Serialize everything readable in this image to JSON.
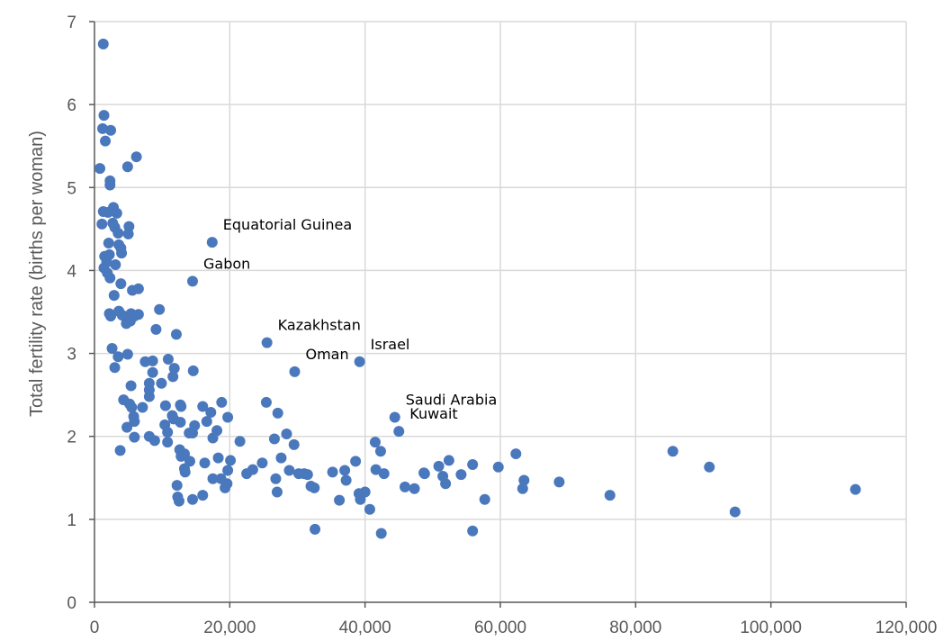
{
  "chart_data": {
    "type": "scatter",
    "title": "",
    "xlabel": "",
    "ylabel": "Total fertility rate (births per woman)",
    "xlim": [
      0,
      120000
    ],
    "ylim": [
      0,
      7
    ],
    "x_ticks": [
      "0",
      "20,000",
      "40,000",
      "60,000",
      "80,000",
      "100,000",
      "120,000"
    ],
    "y_ticks": [
      "0",
      "1",
      "2",
      "3",
      "4",
      "5",
      "6",
      "7"
    ],
    "grid": true,
    "colors": {
      "points": "#4a78bc",
      "grid": "#d9d9d9",
      "axis": "#595959"
    },
    "points": [
      [
        1300,
        6.73
      ],
      [
        1400,
        5.87
      ],
      [
        1200,
        5.71
      ],
      [
        1600,
        5.56
      ],
      [
        2400,
        5.69
      ],
      [
        800,
        5.23
      ],
      [
        2300,
        5.08
      ],
      [
        2300,
        5.03
      ],
      [
        4900,
        5.25
      ],
      [
        6200,
        5.37
      ],
      [
        1300,
        4.71
      ],
      [
        2000,
        4.7
      ],
      [
        2800,
        4.76
      ],
      [
        3300,
        4.69
      ],
      [
        2700,
        4.57
      ],
      [
        1100,
        4.56
      ],
      [
        3000,
        4.52
      ],
      [
        3500,
        4.45
      ],
      [
        5100,
        4.53
      ],
      [
        5000,
        4.44
      ],
      [
        2100,
        4.33
      ],
      [
        3600,
        4.31
      ],
      [
        3900,
        4.27
      ],
      [
        4000,
        4.21
      ],
      [
        1500,
        4.17
      ],
      [
        2200,
        4.19
      ],
      [
        1800,
        4.1
      ],
      [
        3100,
        4.07
      ],
      [
        1400,
        4.03
      ],
      [
        1900,
        3.97
      ],
      [
        2300,
        3.91
      ],
      [
        3900,
        3.84
      ],
      [
        5600,
        3.76
      ],
      [
        6500,
        3.78
      ],
      [
        2900,
        3.7
      ],
      [
        2200,
        3.48
      ],
      [
        2400,
        3.45
      ],
      [
        3600,
        3.51
      ],
      [
        4100,
        3.46
      ],
      [
        5400,
        3.48
      ],
      [
        5900,
        3.45
      ],
      [
        5300,
        3.39
      ],
      [
        4700,
        3.36
      ],
      [
        6500,
        3.47
      ],
      [
        9600,
        3.53
      ],
      [
        9100,
        3.29
      ],
      [
        12100,
        3.23
      ],
      [
        2600,
        3.06
      ],
      [
        3500,
        2.96
      ],
      [
        4900,
        2.99
      ],
      [
        3000,
        2.83
      ],
      [
        7500,
        2.9
      ],
      [
        8600,
        2.91
      ],
      [
        10900,
        2.93
      ],
      [
        11800,
        2.82
      ],
      [
        8600,
        2.77
      ],
      [
        11600,
        2.72
      ],
      [
        14600,
        2.79
      ],
      [
        8100,
        2.64
      ],
      [
        8100,
        2.56
      ],
      [
        9900,
        2.64
      ],
      [
        8100,
        2.48
      ],
      [
        4300,
        2.44
      ],
      [
        5400,
        2.61
      ],
      [
        5200,
        2.39
      ],
      [
        5500,
        2.35
      ],
      [
        7100,
        2.35
      ],
      [
        5800,
        2.24
      ],
      [
        5900,
        2.18
      ],
      [
        4800,
        2.11
      ],
      [
        3800,
        1.83
      ],
      [
        5900,
        1.99
      ],
      [
        8100,
        2.0
      ],
      [
        8900,
        1.95
      ],
      [
        10500,
        2.37
      ],
      [
        10400,
        2.14
      ],
      [
        10800,
        2.05
      ],
      [
        10800,
        1.93
      ],
      [
        11500,
        2.25
      ],
      [
        11700,
        2.21
      ],
      [
        12700,
        2.38
      ],
      [
        12800,
        2.36
      ],
      [
        12700,
        2.17
      ],
      [
        14000,
        2.04
      ],
      [
        14500,
        2.04
      ],
      [
        14800,
        2.13
      ],
      [
        16000,
        2.36
      ],
      [
        16600,
        2.18
      ],
      [
        17200,
        2.29
      ],
      [
        17500,
        1.98
      ],
      [
        18100,
        2.07
      ],
      [
        18800,
        2.41
      ],
      [
        19700,
        2.23
      ],
      [
        12600,
        1.84
      ],
      [
        12800,
        1.76
      ],
      [
        13300,
        1.79
      ],
      [
        13300,
        1.61
      ],
      [
        13400,
        1.57
      ],
      [
        14100,
        1.7
      ],
      [
        16300,
        1.68
      ],
      [
        17500,
        1.49
      ],
      [
        18300,
        1.74
      ],
      [
        18700,
        1.49
      ],
      [
        19300,
        1.38
      ],
      [
        19600,
        1.43
      ],
      [
        19700,
        1.59
      ],
      [
        20100,
        1.71
      ],
      [
        12200,
        1.41
      ],
      [
        12300,
        1.27
      ],
      [
        12500,
        1.22
      ],
      [
        14500,
        1.24
      ],
      [
        16000,
        1.29
      ],
      [
        21500,
        1.94
      ],
      [
        22500,
        1.55
      ],
      [
        23400,
        1.6
      ],
      [
        24800,
        1.68
      ],
      [
        25400,
        2.41
      ],
      [
        26600,
        1.97
      ],
      [
        26800,
        1.49
      ],
      [
        27000,
        1.33
      ],
      [
        27100,
        2.28
      ],
      [
        27600,
        1.74
      ],
      [
        28400,
        2.03
      ],
      [
        28800,
        1.59
      ],
      [
        29500,
        1.9
      ],
      [
        30200,
        1.55
      ],
      [
        31000,
        1.55
      ],
      [
        31500,
        1.54
      ],
      [
        32000,
        1.4
      ],
      [
        32500,
        1.38
      ],
      [
        32600,
        0.88
      ],
      [
        35200,
        1.57
      ],
      [
        36200,
        1.23
      ],
      [
        37000,
        1.59
      ],
      [
        37200,
        1.47
      ],
      [
        38600,
        1.7
      ],
      [
        39100,
        1.31
      ],
      [
        39300,
        1.24
      ],
      [
        40000,
        1.33
      ],
      [
        40700,
        1.12
      ],
      [
        41500,
        1.93
      ],
      [
        41600,
        1.6
      ],
      [
        42300,
        1.82
      ],
      [
        42800,
        1.55
      ],
      [
        42400,
        0.83
      ],
      [
        45900,
        1.39
      ],
      [
        47300,
        1.37
      ],
      [
        48700,
        1.56
      ],
      [
        48800,
        1.55
      ],
      [
        50900,
        1.64
      ],
      [
        51500,
        1.52
      ],
      [
        51900,
        1.43
      ],
      [
        52400,
        1.71
      ],
      [
        54200,
        1.54
      ],
      [
        55900,
        1.66
      ],
      [
        55900,
        0.86
      ],
      [
        57700,
        1.24
      ],
      [
        59700,
        1.63
      ],
      [
        62300,
        1.79
      ],
      [
        63300,
        1.37
      ],
      [
        63500,
        1.47
      ],
      [
        68700,
        1.45
      ],
      [
        76200,
        1.29
      ],
      [
        85500,
        1.82
      ],
      [
        90900,
        1.63
      ],
      [
        94700,
        1.09
      ],
      [
        112500,
        1.36
      ],
      [
        17400,
        4.34
      ],
      [
        14500,
        3.87
      ],
      [
        25500,
        3.13
      ],
      [
        29600,
        2.78
      ],
      [
        39200,
        2.9
      ],
      [
        44400,
        2.23
      ],
      [
        45000,
        2.06
      ]
    ],
    "annotations": [
      {
        "text": "Equatorial Guinea",
        "x": 17400,
        "y": 4.34
      },
      {
        "text": "Gabon",
        "x": 14500,
        "y": 3.87
      },
      {
        "text": "Kazakhstan",
        "x": 25500,
        "y": 3.13
      },
      {
        "text": "Oman",
        "x": 29600,
        "y": 2.78
      },
      {
        "text": "Israel",
        "x": 39200,
        "y": 2.9
      },
      {
        "text": "Saudi Arabia",
        "x": 44400,
        "y": 2.23
      },
      {
        "text": "Kuwait",
        "x": 45000,
        "y": 2.06
      }
    ]
  }
}
